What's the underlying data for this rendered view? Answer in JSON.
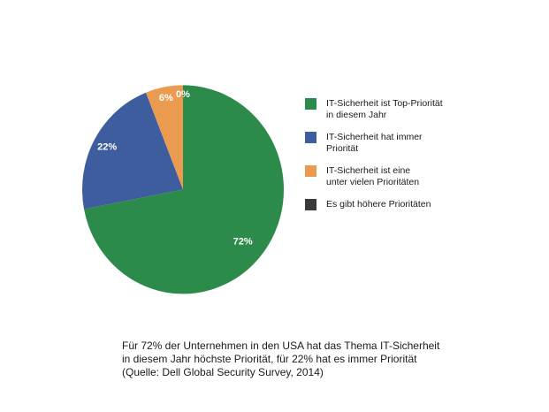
{
  "chart_data": {
    "type": "pie",
    "unit": "%",
    "slices": [
      {
        "label": "IT-Sicherheit ist Top-Priorität in diesem Jahr",
        "value": 72,
        "data_label": "72%",
        "color": "#2C8A4A"
      },
      {
        "label": "IT-Sicherheit hat immer Priorität",
        "value": 22,
        "data_label": "22%",
        "color": "#3E5D9E"
      },
      {
        "label": "IT-Sicherheit ist eine unter vielen Prioritäten",
        "value": 6,
        "data_label": "6%",
        "color": "#EB9B50"
      },
      {
        "label": "Es gibt höhere Prioritäten",
        "value": 0,
        "data_label": "0%",
        "color": "#3A3A3C"
      }
    ],
    "start_angle_deg": 0,
    "direction": "clockwise",
    "data_label_style": "inside, white, bold",
    "label_radius_factors": [
      0.77,
      0.86,
      0.9,
      0.92
    ],
    "legend_position": "right",
    "grid": false,
    "title": "",
    "source": "Dell Global Security Survey, 2014"
  },
  "legend": {
    "items": [
      {
        "lines": [
          "IT-Sicherheit ist Top-Priorität",
          "in diesem Jahr"
        ],
        "color": "#2C8A4A"
      },
      {
        "lines": [
          "IT-Sicherheit hat immer",
          "Priorität"
        ],
        "color": "#3E5D9E"
      },
      {
        "lines": [
          "IT-Sicherheit ist eine",
          "unter vielen Prioritäten"
        ],
        "color": "#EB9B50"
      },
      {
        "lines": [
          "Es gibt höhere Prioritäten"
        ],
        "color": "#3A3A3C"
      }
    ]
  },
  "caption": {
    "lines": [
      "Für 72% der Unternehmen in den USA hat das Thema IT-Sicherheit",
      "in diesem Jahr höchste Priorität, für 22% hat es immer Priorität",
      "(Quelle: Dell Global Security Survey, 2014)"
    ]
  }
}
